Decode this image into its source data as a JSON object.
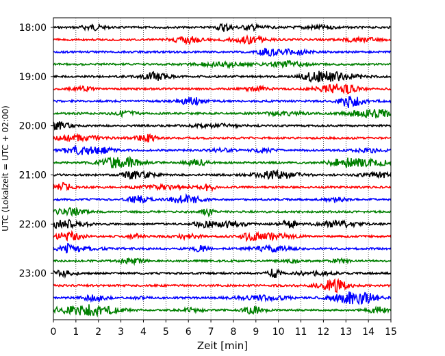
{
  "chart_data": {
    "type": "line",
    "title": "",
    "xlabel": "Zeit  [min]",
    "ylabel": "UTC (Lokalzeit = UTC + 02:00)",
    "xlim": [
      0,
      15
    ],
    "x_ticks": [
      "0",
      "1",
      "2",
      "3",
      "4",
      "5",
      "6",
      "7",
      "8",
      "9",
      "10",
      "11",
      "12",
      "13",
      "14",
      "15"
    ],
    "y_ticks": [
      "18:00",
      "19:00",
      "20:00",
      "21:00",
      "22:00",
      "23:00"
    ],
    "grid": "vertical dotted",
    "trace_minutes": 15,
    "trace_colors": [
      "#000000",
      "#ff0000",
      "#0000ff",
      "#008000"
    ],
    "traces": [
      {
        "start": "18:00"
      },
      {
        "start": "18:15"
      },
      {
        "start": "18:30"
      },
      {
        "start": "18:45"
      },
      {
        "start": "19:00"
      },
      {
        "start": "19:15"
      },
      {
        "start": "19:30"
      },
      {
        "start": "19:45"
      },
      {
        "start": "20:00"
      },
      {
        "start": "20:15"
      },
      {
        "start": "20:30"
      },
      {
        "start": "20:45"
      },
      {
        "start": "21:00"
      },
      {
        "start": "21:15"
      },
      {
        "start": "21:30"
      },
      {
        "start": "21:45"
      },
      {
        "start": "22:00"
      },
      {
        "start": "22:15"
      },
      {
        "start": "22:30"
      },
      {
        "start": "22:45"
      },
      {
        "start": "23:00"
      },
      {
        "start": "23:15"
      },
      {
        "start": "23:30"
      },
      {
        "start": "23:45"
      }
    ]
  }
}
